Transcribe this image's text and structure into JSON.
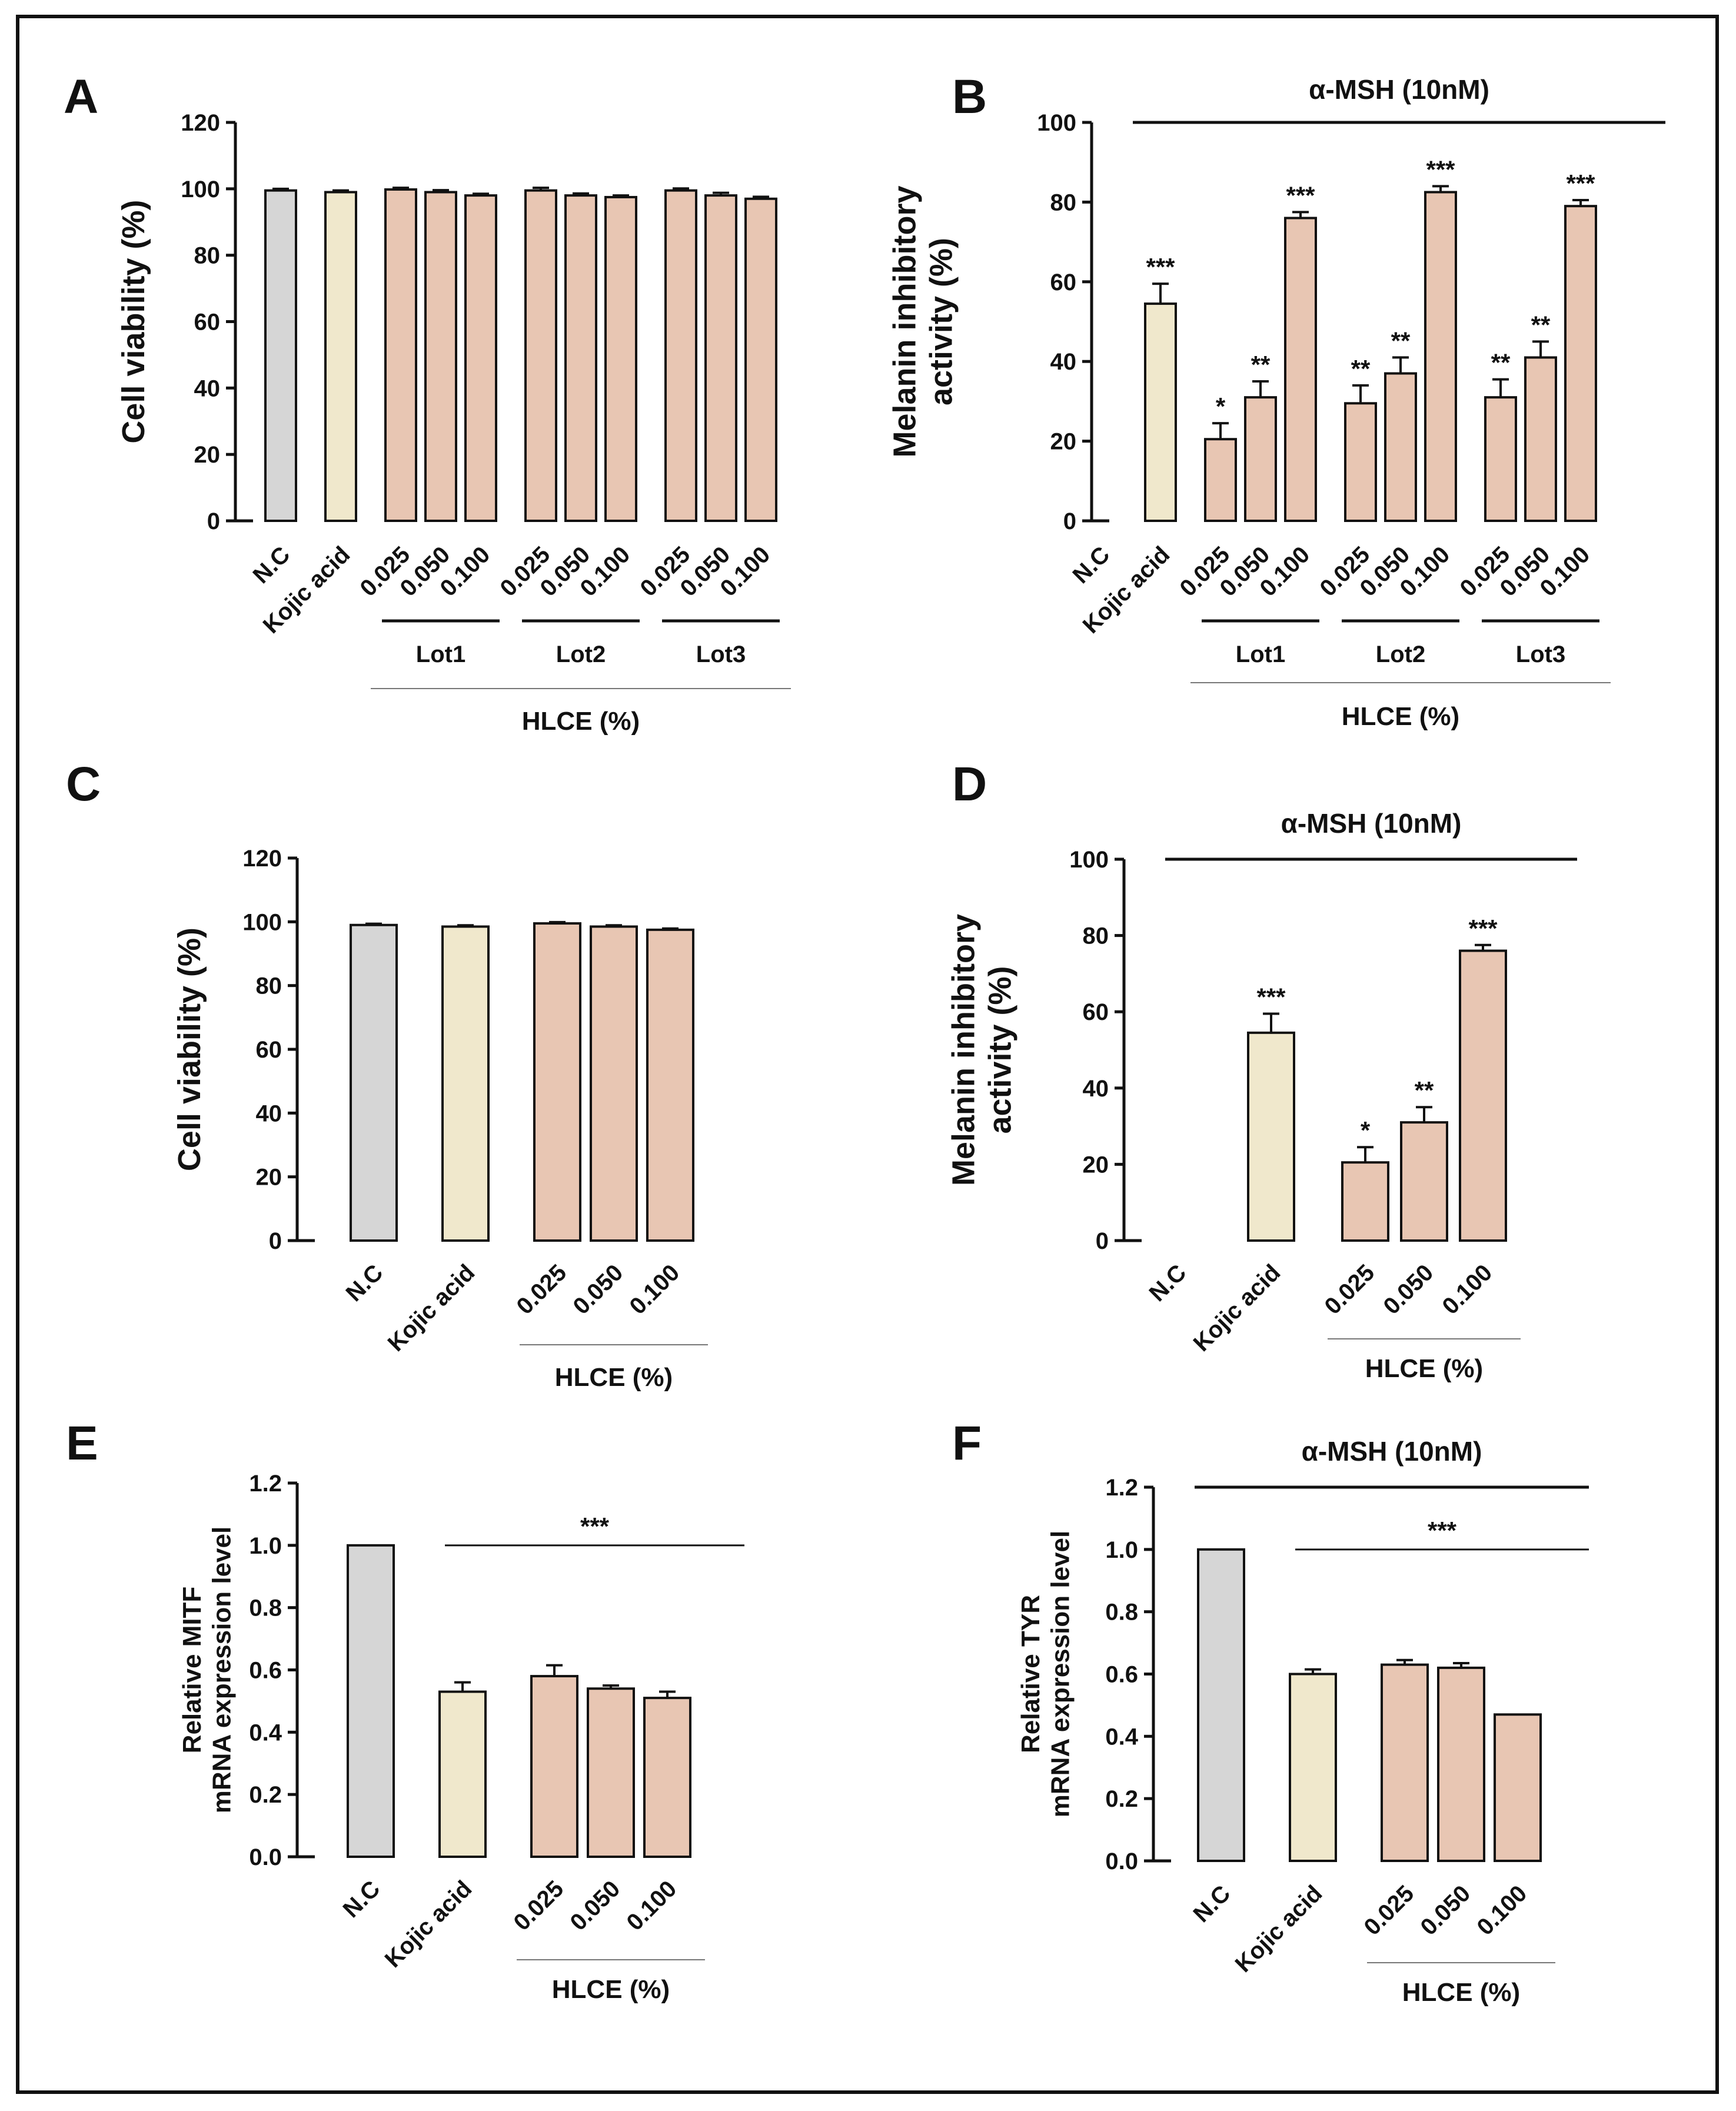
{
  "figure": {
    "border_color": "#111111",
    "colors": {
      "nc": "#d6d6d6",
      "kojic": "#f0e8cc",
      "hlce": "#e8c6b3",
      "stroke": "#111111"
    }
  },
  "chart_data": [
    {
      "id": "A",
      "panel_label": "A",
      "type": "bar",
      "ylabel": "Cell viability (%)",
      "xlabel": "HLCE (%)",
      "condition": "",
      "ylim": [
        0,
        120
      ],
      "yticks": [
        "0",
        "20",
        "40",
        "60",
        "80",
        "100",
        "120"
      ],
      "categories": [
        "N.C",
        "Kojic acid",
        "0.025",
        "0.050",
        "0.100",
        "0.025",
        "0.050",
        "0.100",
        "0.025",
        "0.050",
        "0.100"
      ],
      "values": [
        99.5,
        99.0,
        99.8,
        99.0,
        98.0,
        99.5,
        98.0,
        97.5,
        99.5,
        98.0,
        97.0
      ],
      "errors": [
        0.5,
        0.5,
        0.5,
        0.6,
        0.5,
        0.8,
        0.6,
        0.5,
        0.6,
        0.8,
        0.6
      ],
      "kinds": [
        "nc",
        "kojic",
        "hlce",
        "hlce",
        "hlce",
        "hlce",
        "hlce",
        "hlce",
        "hlce",
        "hlce",
        "hlce"
      ],
      "significance": [
        "",
        "",
        "",
        "",
        "",
        "",
        "",
        "",
        "",
        "",
        ""
      ],
      "groups": [
        {
          "label": "Lot1",
          "from": 2,
          "to": 4
        },
        {
          "label": "Lot2",
          "from": 5,
          "to": 7
        },
        {
          "label": "Lot3",
          "from": 8,
          "to": 10
        }
      ],
      "hlce_span": [
        2,
        10
      ],
      "sig_line": null
    },
    {
      "id": "B",
      "panel_label": "B",
      "type": "bar",
      "ylabel": "Melanin inhibitory activity (%)",
      "xlabel": "HLCE (%)",
      "condition": "α-MSH (10nM)",
      "ylim": [
        0,
        100
      ],
      "yticks": [
        "0",
        "20",
        "40",
        "60",
        "80",
        "100"
      ],
      "categories": [
        "N.C",
        "Kojic acid",
        "0.025",
        "0.050",
        "0.100",
        "0.025",
        "0.050",
        "0.100",
        "0.025",
        "0.050",
        "0.100"
      ],
      "values": [
        0,
        54.5,
        20.5,
        31.0,
        76.0,
        29.5,
        37.0,
        82.5,
        31.0,
        41.0,
        79.0
      ],
      "errors": [
        0,
        5.0,
        4.0,
        4.0,
        1.5,
        4.5,
        4.0,
        1.5,
        4.5,
        4.0,
        1.5
      ],
      "kinds": [
        "nc",
        "kojic",
        "hlce",
        "hlce",
        "hlce",
        "hlce",
        "hlce",
        "hlce",
        "hlce",
        "hlce",
        "hlce"
      ],
      "significance": [
        "",
        "***",
        "*",
        "**",
        "***",
        "**",
        "**",
        "***",
        "**",
        "**",
        "***"
      ],
      "groups": [
        {
          "label": "Lot1",
          "from": 2,
          "to": 4
        },
        {
          "label": "Lot2",
          "from": 5,
          "to": 7
        },
        {
          "label": "Lot3",
          "from": 8,
          "to": 10
        }
      ],
      "hlce_span": [
        2,
        10
      ],
      "sig_line": null
    },
    {
      "id": "C",
      "panel_label": "C",
      "type": "bar",
      "ylabel": "Cell viability (%)",
      "xlabel": "HLCE (%)",
      "condition": "",
      "ylim": [
        0,
        120
      ],
      "yticks": [
        "0",
        "20",
        "40",
        "60",
        "80",
        "100",
        "120"
      ],
      "categories": [
        "N.C",
        "Kojic acid",
        "0.025",
        "0.050",
        "0.100"
      ],
      "values": [
        99.0,
        98.5,
        99.5,
        98.5,
        97.5
      ],
      "errors": [
        0.4,
        0.4,
        0.4,
        0.4,
        0.4
      ],
      "kinds": [
        "nc",
        "kojic",
        "hlce",
        "hlce",
        "hlce"
      ],
      "significance": [
        "",
        "",
        "",
        "",
        ""
      ],
      "groups": [],
      "hlce_span": [
        2,
        4
      ],
      "sig_line": null
    },
    {
      "id": "D",
      "panel_label": "D",
      "type": "bar",
      "ylabel": "Melanin inhibitory activity (%)",
      "xlabel": "HLCE (%)",
      "condition": "α-MSH (10nM)",
      "ylim": [
        0,
        100
      ],
      "yticks": [
        "0",
        "20",
        "40",
        "60",
        "80",
        "100"
      ],
      "categories": [
        "N.C",
        "Kojic acid",
        "0.025",
        "0.050",
        "0.100"
      ],
      "values": [
        0,
        54.5,
        20.5,
        31.0,
        76.0
      ],
      "errors": [
        0,
        5.0,
        4.0,
        4.0,
        1.5
      ],
      "kinds": [
        "nc",
        "kojic",
        "hlce",
        "hlce",
        "hlce"
      ],
      "significance": [
        "",
        "***",
        "*",
        "**",
        "***"
      ],
      "groups": [],
      "hlce_span": [
        2,
        4
      ],
      "sig_line": null
    },
    {
      "id": "E",
      "panel_label": "E",
      "type": "bar",
      "ylabel": "Relative MITF mRNA expression level",
      "xlabel": "HLCE (%)",
      "condition": "",
      "ylim": [
        0,
        1.2
      ],
      "yticks": [
        "0.0",
        "0.2",
        "0.4",
        "0.6",
        "0.8",
        "1.0",
        "1.2"
      ],
      "categories": [
        "N.C",
        "Kojic acid",
        "0.025",
        "0.050",
        "0.100"
      ],
      "values": [
        1.0,
        0.53,
        0.58,
        0.54,
        0.51
      ],
      "errors": [
        0,
        0.03,
        0.035,
        0.01,
        0.02
      ],
      "kinds": [
        "nc",
        "kojic",
        "hlce",
        "hlce",
        "hlce"
      ],
      "significance": [
        "",
        "",
        "",
        "",
        ""
      ],
      "groups": [],
      "hlce_span": [
        2,
        4
      ],
      "sig_line": {
        "label": "***",
        "value": 1.0,
        "from": 1,
        "to": 4
      }
    },
    {
      "id": "F",
      "panel_label": "F",
      "type": "bar",
      "ylabel": "Relative TYR mRNA expression level",
      "xlabel": "HLCE (%)",
      "condition": "α-MSH (10nM)",
      "ylim": [
        0,
        1.2
      ],
      "yticks": [
        "0.0",
        "0.2",
        "0.4",
        "0.6",
        "0.8",
        "1.0",
        "1.2"
      ],
      "categories": [
        "N.C",
        "Kojic acid",
        "0.025",
        "0.050",
        "0.100"
      ],
      "values": [
        1.0,
        0.6,
        0.63,
        0.62,
        0.47
      ],
      "errors": [
        0,
        0.015,
        0.015,
        0.015,
        0
      ],
      "kinds": [
        "nc",
        "kojic",
        "hlce",
        "hlce",
        "hlce"
      ],
      "significance": [
        "",
        "",
        "",
        "",
        ""
      ],
      "groups": [],
      "hlce_span": [
        2,
        4
      ],
      "sig_line": {
        "label": "***",
        "value": 1.0,
        "from": 1,
        "to": 4
      }
    }
  ]
}
